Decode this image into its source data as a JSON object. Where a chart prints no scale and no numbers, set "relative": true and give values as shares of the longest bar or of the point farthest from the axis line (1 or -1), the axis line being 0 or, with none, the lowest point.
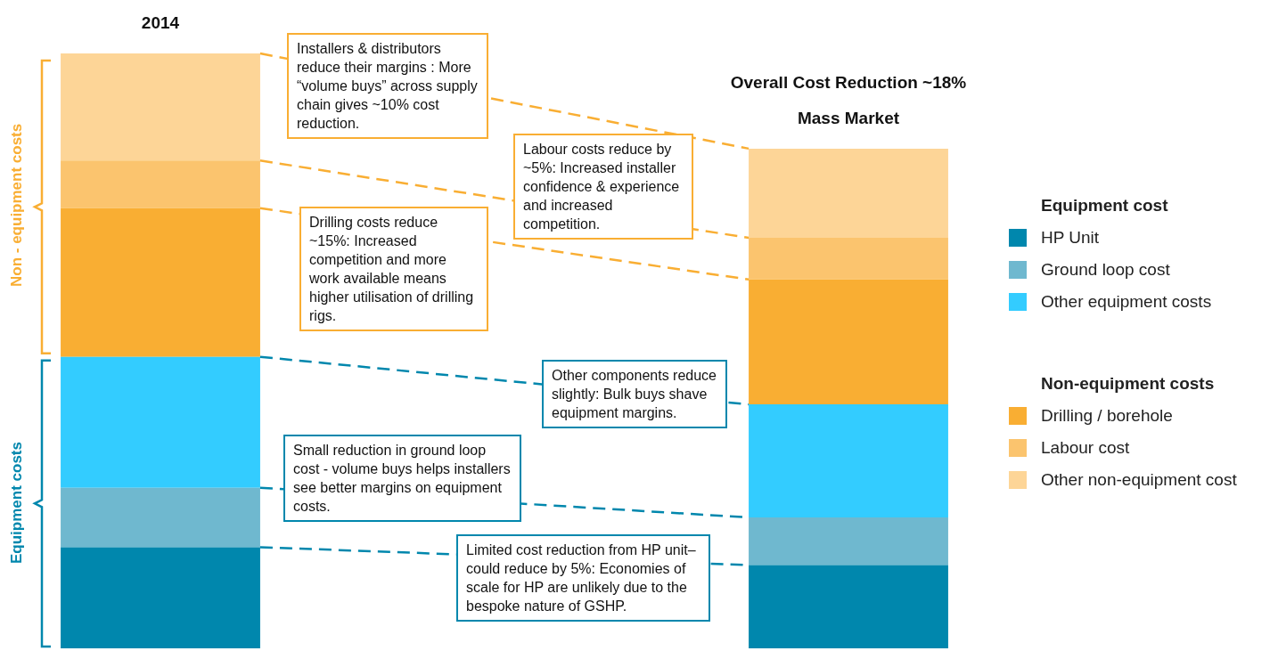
{
  "chart_data": {
    "type": "bar",
    "stacked": true,
    "relative": true,
    "legend": "right",
    "categories": [
      "2014",
      "Mass Market"
    ],
    "series": [
      {
        "name": "HP Unit",
        "color": "#0087ad",
        "values": [
          0.17,
          0.14
        ]
      },
      {
        "name": "Ground loop cost",
        "color": "#6fb8cf",
        "values": [
          0.1,
          0.08
        ]
      },
      {
        "name": "Other equipment costs",
        "color": "#33ccff",
        "values": [
          0.22,
          0.19
        ]
      },
      {
        "name": "Drilling / borehole",
        "color": "#f9ae33",
        "values": [
          0.25,
          0.21
        ]
      },
      {
        "name": "Labour cost",
        "color": "#fbc46e",
        "values": [
          0.08,
          0.07
        ]
      },
      {
        "name": "Other non-equipment cost",
        "color": "#fdd597",
        "values": [
          0.18,
          0.15
        ]
      }
    ],
    "annotations": [
      "Overall Cost Reduction ~18%",
      "Non - equipment costs",
      "Equipment costs",
      "Equipment cost",
      "Non-equipment costs",
      "Installers & distributors reduce their margins : More “volume buys” across supply chain gives ~10% cost reduction.",
      "Labour costs reduce by ~5%: Increased installer confidence & experience and increased competition.",
      "Drilling costs reduce ~15%: Increased competition and more work available means higher utilisation of drilling rigs.",
      "Other components reduce slightly: Bulk buys shave equipment margins.",
      "Small reduction in ground loop cost - volume buys helps installers see better margins on equipment costs.",
      "Limited cost reduction from HP unit– could reduce by 5%: Economies of scale for HP are unlikely due to the bespoke nature of GSHP."
    ]
  }
}
